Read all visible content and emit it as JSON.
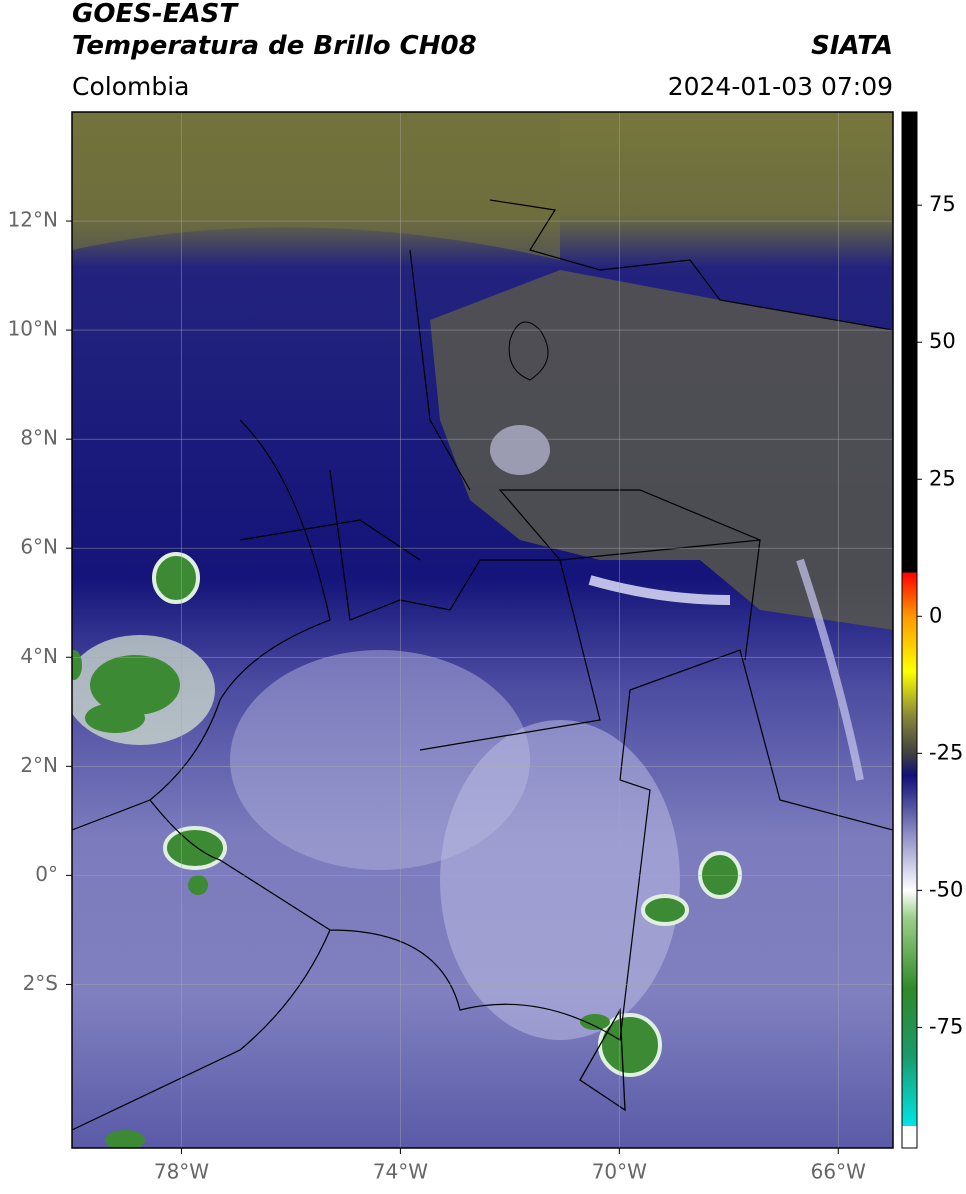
{
  "header": {
    "satellite": "GOES-EAST",
    "product": "Temperatura de Brillo CH08",
    "region": "Colombia",
    "source": "SIATA",
    "datetime": "2024-01-03 07:09"
  },
  "map": {
    "xlim": [
      -80,
      -65
    ],
    "ylim": [
      -5,
      14
    ],
    "xticks": [
      {
        "value": -78,
        "label": "78°W"
      },
      {
        "value": -74,
        "label": "74°W"
      },
      {
        "value": -70,
        "label": "70°W"
      },
      {
        "value": -66,
        "label": "66°W"
      }
    ],
    "yticks": [
      {
        "value": 12,
        "label": "12°N"
      },
      {
        "value": 10,
        "label": "10°N"
      },
      {
        "value": 8,
        "label": "8°N"
      },
      {
        "value": 6,
        "label": "6°N"
      },
      {
        "value": 4,
        "label": "4°N"
      },
      {
        "value": 2,
        "label": "2°N"
      },
      {
        "value": 0,
        "label": "0°"
      },
      {
        "value": -2,
        "label": "2°S"
      }
    ],
    "grid": true
  },
  "colorbar": {
    "lim": [
      -97,
      92
    ],
    "ticks": [
      75,
      50,
      25,
      0,
      -25,
      -50,
      -75
    ],
    "stops": [
      {
        "value": -97,
        "color": "#ffffff"
      },
      {
        "value": -93,
        "color": "#ffffff"
      },
      {
        "value": -93,
        "color": "#00e5e5"
      },
      {
        "value": -80,
        "color": "#1a9a6a"
      },
      {
        "value": -68,
        "color": "#2f8a2a"
      },
      {
        "value": -55,
        "color": "#9ccf8a"
      },
      {
        "value": -50,
        "color": "#ffffff"
      },
      {
        "value": -40,
        "color": "#9090c8"
      },
      {
        "value": -29,
        "color": "#10107a"
      },
      {
        "value": -25,
        "color": "#404040"
      },
      {
        "value": -18,
        "color": "#8a8a3a"
      },
      {
        "value": -10,
        "color": "#ffff00"
      },
      {
        "value": 0,
        "color": "#ff9900"
      },
      {
        "value": 8,
        "color": "#ff0000"
      },
      {
        "value": 8,
        "color": "#000000"
      },
      {
        "value": 92,
        "color": "#000000"
      }
    ]
  }
}
